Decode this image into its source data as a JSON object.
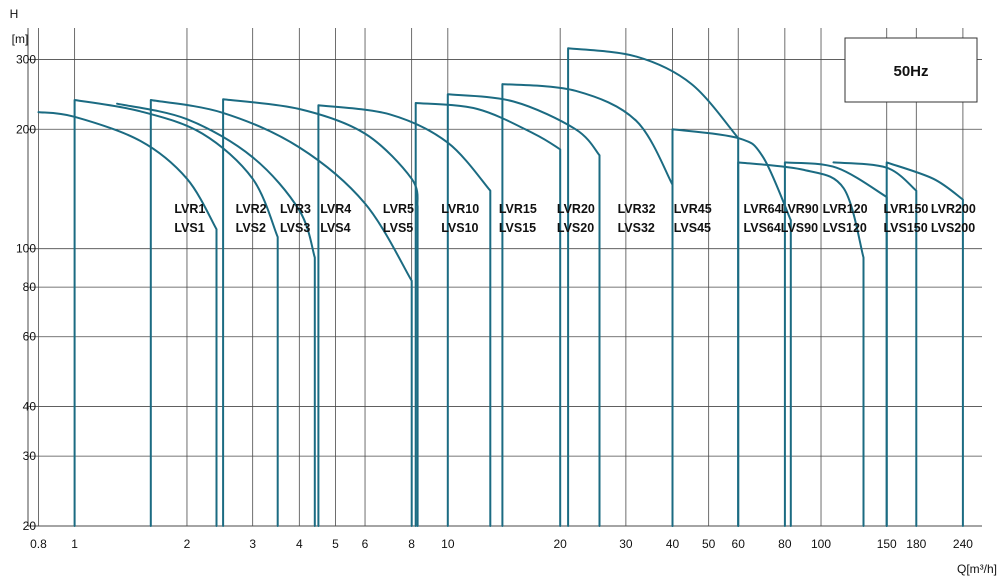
{
  "colors": {
    "curve": "#1b6b82",
    "grid": "#4a4a4a",
    "text": "#111111",
    "box_border": "#333333"
  },
  "chart_data": {
    "type": "line",
    "title": "",
    "frequency_label": "50Hz",
    "xlabel": "Q[m³/h]",
    "ylabel": "H",
    "ylabel_unit": "[m]",
    "x_scale": "log",
    "y_scale": "log",
    "xlim": [
      0.75,
      270
    ],
    "ylim": [
      20,
      360
    ],
    "grid": true,
    "x_ticks": [
      {
        "v": 0.8,
        "label": "0.8"
      },
      {
        "v": 1,
        "label": "1"
      },
      {
        "v": 2,
        "label": "2"
      },
      {
        "v": 3,
        "label": "3"
      },
      {
        "v": 4,
        "label": "4"
      },
      {
        "v": 5,
        "label": "5"
      },
      {
        "v": 6,
        "label": "6"
      },
      {
        "v": 8,
        "label": "8"
      },
      {
        "v": 10,
        "label": "10"
      },
      {
        "v": 20,
        "label": "20"
      },
      {
        "v": 30,
        "label": "30"
      },
      {
        "v": 40,
        "label": "40"
      },
      {
        "v": 50,
        "label": "50"
      },
      {
        "v": 60,
        "label": "60"
      },
      {
        "v": 80,
        "label": "80"
      },
      {
        "v": 100,
        "label": "100"
      },
      {
        "v": 150,
        "label": "150"
      },
      {
        "v": 180,
        "label": "180"
      },
      {
        "v": 240,
        "label": "240"
      }
    ],
    "y_ticks": [
      {
        "v": 20,
        "label": "20"
      },
      {
        "v": 30,
        "label": "30"
      },
      {
        "v": 40,
        "label": "40"
      },
      {
        "v": 60,
        "label": "60"
      },
      {
        "v": 80,
        "label": "80"
      },
      {
        "v": 100,
        "label": "100"
      },
      {
        "v": 200,
        "label": "200"
      },
      {
        "v": 300,
        "label": "300"
      }
    ],
    "series": [
      {
        "name": "LVR1 / LVS1",
        "label_lines": [
          "LVR1",
          "LVS1"
        ],
        "label_at": [
          1.85,
          123
        ],
        "points": [
          [
            0.8,
            221
          ],
          [
            1,
            215
          ],
          [
            1.5,
            187
          ],
          [
            2,
            150
          ],
          [
            2.4,
            112
          ],
          [
            2.4,
            20
          ]
        ]
      },
      {
        "name": "LVR2 / LVS2",
        "label_lines": [
          "LVR2",
          "LVS2"
        ],
        "label_at": [
          2.7,
          123
        ],
        "points": [
          [
            1,
            20
          ],
          [
            1,
            237
          ],
          [
            1.5,
            222
          ],
          [
            2.2,
            195
          ],
          [
            3,
            150
          ],
          [
            3.5,
            107
          ],
          [
            3.5,
            20
          ]
        ]
      },
      {
        "name": "LVR3 / LVS3",
        "label_lines": [
          "LVR3",
          "LVS3"
        ],
        "label_at": [
          3.55,
          123
        ],
        "points": [
          [
            1.3,
            232
          ],
          [
            2,
            212
          ],
          [
            3,
            170
          ],
          [
            4,
            125
          ],
          [
            4.4,
            95
          ],
          [
            4.4,
            20
          ]
        ]
      },
      {
        "name": "LVR4 / LVS4",
        "label_lines": [
          "LVR4",
          "LVS4"
        ],
        "label_at": [
          4.55,
          123
        ],
        "points": [
          [
            1.6,
            20
          ],
          [
            1.6,
            237
          ],
          [
            2.5,
            220
          ],
          [
            4,
            180
          ],
          [
            6,
            130
          ],
          [
            8,
            83
          ],
          [
            8,
            20
          ]
        ]
      },
      {
        "name": "LVR5 / LVS5",
        "label_lines": [
          "LVR5",
          "LVS5"
        ],
        "label_at": [
          6.7,
          123
        ],
        "points": [
          [
            2.5,
            20
          ],
          [
            2.5,
            238
          ],
          [
            4,
            225
          ],
          [
            6,
            195
          ],
          [
            8,
            150
          ],
          [
            8.3,
            128
          ],
          [
            8.3,
            20
          ]
        ]
      },
      {
        "name": "LVR10 / LVS10",
        "label_lines": [
          "LVR10",
          "LVS10"
        ],
        "label_at": [
          9.6,
          123
        ],
        "points": [
          [
            4.5,
            20
          ],
          [
            4.5,
            230
          ],
          [
            7,
            218
          ],
          [
            10,
            185
          ],
          [
            13,
            140
          ],
          [
            13,
            20
          ]
        ]
      },
      {
        "name": "LVR15 / LVS15",
        "label_lines": [
          "LVR15",
          "LVS15"
        ],
        "label_at": [
          13.7,
          123
        ],
        "points": [
          [
            8.2,
            20
          ],
          [
            8.2,
            233
          ],
          [
            12,
            225
          ],
          [
            17,
            195
          ],
          [
            20,
            178
          ],
          [
            20,
            20
          ]
        ]
      },
      {
        "name": "LVR20 / LVS20",
        "label_lines": [
          "LVR20",
          "LVS20"
        ],
        "label_at": [
          19.6,
          123
        ],
        "points": [
          [
            10,
            20
          ],
          [
            10,
            245
          ],
          [
            15,
            235
          ],
          [
            22,
            200
          ],
          [
            25.5,
            172
          ],
          [
            25.5,
            20
          ]
        ]
      },
      {
        "name": "LVR32 / LVS32",
        "label_lines": [
          "LVR32",
          "LVS32"
        ],
        "label_at": [
          28.5,
          123
        ],
        "points": [
          [
            14,
            20
          ],
          [
            14,
            260
          ],
          [
            22,
            250
          ],
          [
            32,
            210
          ],
          [
            40,
            145
          ],
          [
            40,
            20
          ]
        ]
      },
      {
        "name": "LVR45 / LVS45",
        "label_lines": [
          "LVR45",
          "LVS45"
        ],
        "label_at": [
          40.3,
          123
        ],
        "points": [
          [
            21,
            20
          ],
          [
            21,
            320
          ],
          [
            32,
            305
          ],
          [
            45,
            260
          ],
          [
            60,
            190
          ],
          [
            60,
            20
          ]
        ]
      },
      {
        "name": "LVR64 / LVS64",
        "label_lines": [
          "LVR64",
          "LVS64"
        ],
        "label_at": [
          62,
          123
        ],
        "points": [
          [
            40,
            20
          ],
          [
            40,
            200
          ],
          [
            60,
            190
          ],
          [
            70,
            170
          ],
          [
            83,
            118
          ],
          [
            83,
            20
          ]
        ]
      },
      {
        "name": "LVR90 / LVS90",
        "label_lines": [
          "LVR90",
          "LVS90"
        ],
        "label_at": [
          78,
          123
        ],
        "points": [
          [
            60,
            20
          ],
          [
            60,
            165
          ],
          [
            90,
            158
          ],
          [
            115,
            142
          ],
          [
            130,
            95
          ],
          [
            130,
            20
          ]
        ]
      },
      {
        "name": "LVR120 / LVS120",
        "label_lines": [
          "LVR120",
          "LVS120"
        ],
        "label_at": [
          101,
          123
        ],
        "points": [
          [
            80,
            20
          ],
          [
            80,
            165
          ],
          [
            110,
            160
          ],
          [
            150,
            135
          ],
          [
            150,
            20
          ]
        ]
      },
      {
        "name": "LVR150 / LVS150",
        "label_lines": [
          "LVR150",
          "LVS150"
        ],
        "label_at": [
          147,
          123
        ],
        "points": [
          [
            108,
            165
          ],
          [
            150,
            160
          ],
          [
            180,
            140
          ],
          [
            180,
            20
          ]
        ]
      },
      {
        "name": "LVR200 / LVS200",
        "label_lines": [
          "LVR200",
          "LVS200"
        ],
        "label_at": [
          197,
          123
        ],
        "points": [
          [
            150,
            20
          ],
          [
            150,
            165
          ],
          [
            200,
            150
          ],
          [
            240,
            133
          ],
          [
            240,
            20
          ]
        ]
      }
    ]
  }
}
